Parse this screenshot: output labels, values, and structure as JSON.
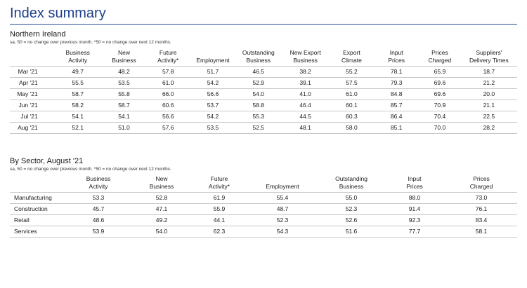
{
  "title": "Index summary",
  "ni": {
    "heading": "Northern Ireland",
    "note": "sa, 50 = no change over previous month. *50 = no change over next 12 months.",
    "columns": [
      [
        "Business",
        "Activity"
      ],
      [
        "New",
        "Business"
      ],
      [
        "Future",
        "Activity*"
      ],
      [
        "",
        "Employment"
      ],
      [
        "Outstanding",
        "Business"
      ],
      [
        "New Export",
        "Business"
      ],
      [
        "Export",
        "Climate"
      ],
      [
        "Input",
        "Prices"
      ],
      [
        "Prices",
        "Charged"
      ],
      [
        "Suppliers'",
        "Delivery Times"
      ]
    ],
    "rows": [
      {
        "label": "Mar '21",
        "values": [
          "49.7",
          "48.2",
          "57.8",
          "51.7",
          "46.5",
          "38.2",
          "55.2",
          "78.1",
          "65.9",
          "18.7"
        ]
      },
      {
        "label": "Apr '21",
        "values": [
          "55.5",
          "53.5",
          "61.0",
          "54.2",
          "52.9",
          "39.1",
          "57.5",
          "79.3",
          "69.6",
          "21.2"
        ]
      },
      {
        "label": "May '21",
        "values": [
          "58.7",
          "55.8",
          "66.0",
          "56.6",
          "54.0",
          "41.0",
          "61.0",
          "84.8",
          "69.6",
          "20.0"
        ]
      },
      {
        "label": "Jun '21",
        "values": [
          "58.2",
          "58.7",
          "60.6",
          "53.7",
          "58.8",
          "46.4",
          "60.1",
          "85.7",
          "70.9",
          "21.1"
        ]
      },
      {
        "label": "Jul '21",
        "values": [
          "54.1",
          "54.1",
          "56.6",
          "54.2",
          "55.3",
          "44.5",
          "60.3",
          "86.4",
          "70.4",
          "22.5"
        ]
      },
      {
        "label": "Aug '21",
        "values": [
          "52.1",
          "51.0",
          "57.6",
          "53.5",
          "52.5",
          "48.1",
          "58.0",
          "85.1",
          "70.0",
          "28.2"
        ]
      }
    ]
  },
  "sector": {
    "heading": "By Sector, August '21",
    "note": "sa, 50 = no change over previous month. *50 = no change over next 12 months.",
    "columns": [
      [
        "Business",
        "Activity"
      ],
      [
        "New",
        "Business"
      ],
      [
        "Future",
        "Activity*"
      ],
      [
        "",
        "Employment"
      ],
      [
        "Outstanding",
        "Business"
      ],
      [
        "Input",
        "Prices"
      ],
      [
        "Prices",
        "Charged"
      ]
    ],
    "rows": [
      {
        "label": "Manufacturing",
        "values": [
          "53.3",
          "52.8",
          "61.9",
          "55.4",
          "55.0",
          "88.0",
          "73.0"
        ]
      },
      {
        "label": "Construction",
        "values": [
          "45.7",
          "47.1",
          "55.9",
          "48.7",
          "52.3",
          "91.4",
          "76.1"
        ]
      },
      {
        "label": "Retail",
        "values": [
          "48.6",
          "49.2",
          "44.1",
          "52.3",
          "52.6",
          "92.3",
          "83.4"
        ]
      },
      {
        "label": "Services",
        "values": [
          "53.9",
          "54.0",
          "62.3",
          "54.3",
          "51.6",
          "77.7",
          "58.1"
        ]
      }
    ]
  }
}
